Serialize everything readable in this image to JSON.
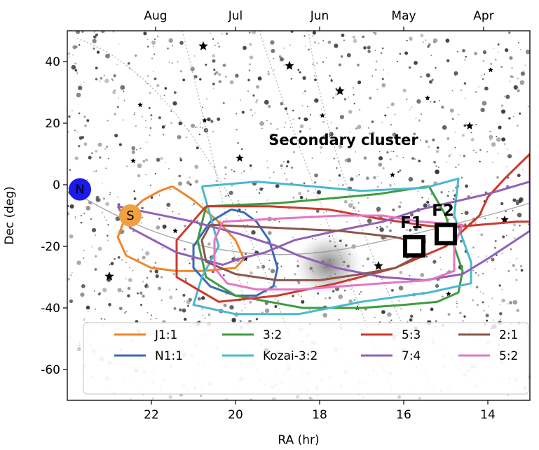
{
  "chart_data": {
    "type": "line",
    "title": "",
    "xlabel": "RA (hr)",
    "ylabel": "Dec (deg)",
    "xlim": [
      24,
      13
    ],
    "ylim": [
      -70,
      50
    ],
    "x_ticks": [
      22,
      20,
      18,
      16,
      14
    ],
    "y_ticks": [
      40,
      20,
      0,
      -20,
      -40,
      -60
    ],
    "grid": false,
    "legend_position": "bottom",
    "top_axis": {
      "labels": [
        "Aug",
        "Jul",
        "Jun",
        "May",
        "Apr"
      ],
      "ra_positions": [
        21.9,
        20.0,
        18.0,
        16.0,
        14.1
      ]
    },
    "annotation": "Secondary cluster",
    "markers": [
      {
        "label": "N",
        "x": 23.7,
        "y": -1.5,
        "color": "#1a1aee"
      },
      {
        "label": "S",
        "x": 22.5,
        "y": -10,
        "color": "#f0a040"
      }
    ],
    "fields": [
      {
        "label": "F1",
        "x": 15.75,
        "y": -20
      },
      {
        "label": "F2",
        "x": 15.0,
        "y": -16
      }
    ],
    "series": [
      {
        "name": "J1:1",
        "color": "#f0862a",
        "x": [
          21.5,
          21.0,
          20.4,
          20.0,
          19.8,
          20.0,
          20.8,
          21.4,
          22.0,
          22.6,
          22.8,
          22.6,
          22.2,
          21.8,
          21.5
        ],
        "y": [
          -0.5,
          -5,
          -12,
          -18,
          -24,
          -27,
          -28,
          -28,
          -27,
          -23,
          -17,
          -10,
          -5,
          -2,
          -0.5
        ]
      },
      {
        "name": "N1:1",
        "color": "#3a6ab4",
        "x": [
          20.1,
          20.6,
          21.0,
          21.0,
          20.6,
          20.0,
          19.5,
          19.1,
          19.0,
          19.2,
          19.5,
          19.8,
          20.1
        ],
        "y": [
          -8,
          -12,
          -20,
          -27,
          -33,
          -36,
          -36,
          -33,
          -27,
          -18,
          -12,
          -9,
          -8
        ]
      },
      {
        "name": "3:2",
        "color": "#3e9c3e",
        "x": [
          20.7,
          19.0,
          16.6,
          15.4,
          15.0,
          14.8,
          14.6,
          14.7,
          15.2,
          16.0,
          17.0,
          18.4,
          20.0,
          20.7,
          20.9,
          20.7
        ],
        "y": [
          -7,
          -6,
          -3,
          -0.5,
          -10,
          -20,
          -28,
          -35,
          -38,
          -39,
          -40,
          -40,
          -36,
          -30,
          -18,
          -7
        ]
      },
      {
        "name": "Kozai-3:2",
        "color": "#4ab8d0",
        "x": [
          20.8,
          19.5,
          18.6,
          17.0,
          15.5,
          14.7,
          14.8,
          14.4,
          14.4,
          15.4,
          17.0,
          18.5,
          20.0,
          21.0,
          20.8,
          20.4,
          20.6,
          20.8
        ],
        "y": [
          -0.5,
          1,
          0,
          -2,
          -1,
          2,
          -10,
          -25,
          -32,
          -35,
          -38,
          -42,
          -42,
          -39,
          -30,
          -20,
          -10,
          -0.5
        ]
      },
      {
        "name": "5:3",
        "color": "#cc3a2e",
        "x": [
          20.7,
          19.2,
          17.8,
          16.6,
          15.6,
          15.0,
          14.2,
          13.3,
          13.0,
          13.0,
          13.6,
          14.0,
          14.2,
          15.0,
          16.2,
          17.6,
          19.0,
          20.4,
          21.4,
          21.4,
          20.7
        ],
        "y": [
          -7,
          -7,
          -8,
          -11,
          -13,
          -14,
          -13,
          -12,
          -12,
          10,
          2,
          -4,
          -10,
          -20,
          -27,
          -32,
          -36,
          -38,
          -30,
          -18,
          -7
        ]
      },
      {
        "name": "7:4",
        "color": "#9160b8",
        "x": [
          22.8,
          21.0,
          19.9,
          19.0,
          18.5,
          17.6,
          16.5,
          15.5,
          14.6,
          14.0,
          13.0,
          13.0,
          14.0,
          15.6,
          16.5,
          17.6,
          18.6,
          19.3,
          19.9,
          20.3,
          21.4,
          22.5,
          22.8
        ],
        "y": [
          -7,
          -12,
          -16,
          -20,
          -23,
          -27,
          -30,
          -31,
          -29,
          -24,
          -15,
          1,
          -3,
          -8,
          -12,
          -15,
          -18,
          -22,
          -24,
          -26,
          -22,
          -14,
          -7
        ]
      },
      {
        "name": "2:1",
        "color": "#8c564b",
        "x": [
          20.6,
          19.0,
          17.5,
          16.2,
          15.6,
          15.5,
          16.2,
          17.0,
          18.0,
          19.0,
          20.0,
          20.7,
          20.8,
          20.6
        ],
        "y": [
          -13,
          -14,
          -15,
          -17,
          -19,
          -22,
          -27,
          -29,
          -31,
          -31,
          -29,
          -25,
          -18,
          -13
        ]
      },
      {
        "name": "5:2",
        "color": "#e377c2",
        "x": [
          20.3,
          19.0,
          17.5,
          16.5,
          15.6,
          14.6,
          14.8,
          14.8,
          15.4,
          16.5,
          17.5,
          18.5,
          19.5,
          20.2,
          20.5,
          20.5,
          20.3
        ],
        "y": [
          -12,
          -11,
          -10,
          -10,
          -12,
          -13,
          -20,
          -28,
          -31,
          -32,
          -33,
          -34,
          -34,
          -32,
          -27,
          -18,
          -12
        ]
      }
    ]
  }
}
